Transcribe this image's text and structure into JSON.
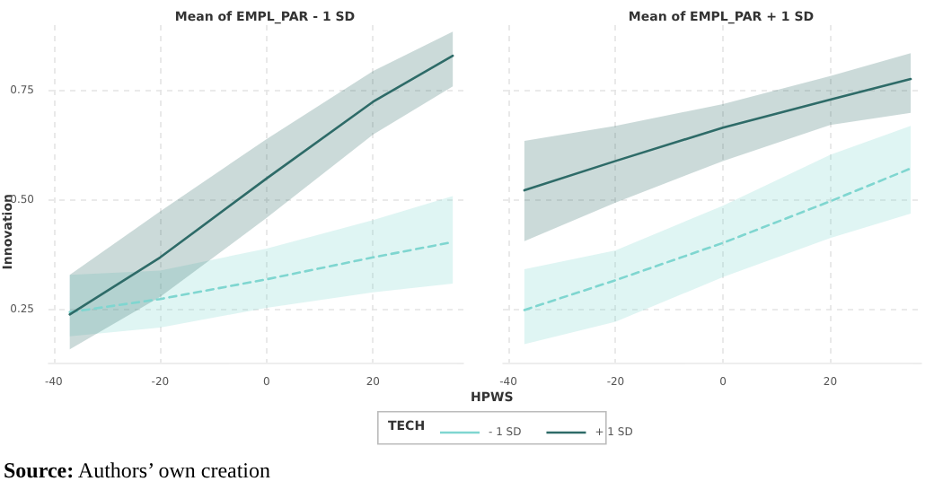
{
  "chart_data": [
    {
      "type": "line",
      "title": "Mean of EMPL_PAR - 1 SD",
      "xlabel": "HPWS",
      "ylabel": "Innovation",
      "legend_title": "TECH",
      "legend": "bottom",
      "grid": true,
      "marker": "none",
      "xlim": [
        -41,
        37
      ],
      "xticks": [
        -40,
        -20,
        0,
        20
      ],
      "ylim": [
        0.13,
        0.9
      ],
      "yticks": [
        0.25,
        {
          "value": 0.5,
          "label": "0.50"
        },
        0.75
      ],
      "x": [
        -37,
        -20,
        0,
        20,
        35
      ],
      "series": [
        {
          "name": "- 1 SD",
          "color": "#7fd6d0",
          "line_style": "dashed",
          "values": [
            0.245,
            0.275,
            0.32,
            0.37,
            0.405
          ],
          "lower": [
            0.19,
            0.21,
            0.255,
            0.29,
            0.31
          ],
          "upper": [
            0.33,
            0.34,
            0.39,
            0.455,
            0.51
          ]
        },
        {
          "name": "+ 1 SD",
          "color": "#2e6b68",
          "line_style": "solid",
          "values": [
            0.24,
            0.37,
            0.55,
            0.725,
            0.83
          ],
          "lower": [
            0.16,
            0.28,
            0.46,
            0.65,
            0.76
          ],
          "upper": [
            0.33,
            0.475,
            0.64,
            0.795,
            0.885
          ]
        }
      ],
      "annotations": [
        "Source: Authors’ own creation"
      ]
    },
    {
      "type": "line",
      "title": "Mean of EMPL_PAR + 1 SD",
      "grid": true,
      "marker": "none",
      "tick_labels": "x",
      "xlim": [
        -41,
        37
      ],
      "xticks": [
        -40,
        -20,
        0,
        20
      ],
      "ylim": [
        0.13,
        0.9
      ],
      "yticks": [
        0.25,
        0.5,
        0.75
      ],
      "x": [
        -37,
        -20,
        0,
        20,
        35
      ],
      "series": [
        {
          "color": "#7fd6d0",
          "line_style": "dashed",
          "values": [
            0.25,
            0.318,
            0.403,
            0.498,
            0.573
          ],
          "lower": [
            0.172,
            0.223,
            0.325,
            0.414,
            0.47
          ],
          "upper": [
            0.343,
            0.386,
            0.488,
            0.604,
            0.67
          ]
        },
        {
          "color": "#2e6b68",
          "line_style": "solid",
          "values": [
            0.523,
            0.59,
            0.666,
            0.73,
            0.777
          ],
          "lower": [
            0.407,
            0.495,
            0.59,
            0.672,
            0.7
          ],
          "upper": [
            0.636,
            0.67,
            0.72,
            0.784,
            0.836
          ]
        }
      ]
    }
  ]
}
